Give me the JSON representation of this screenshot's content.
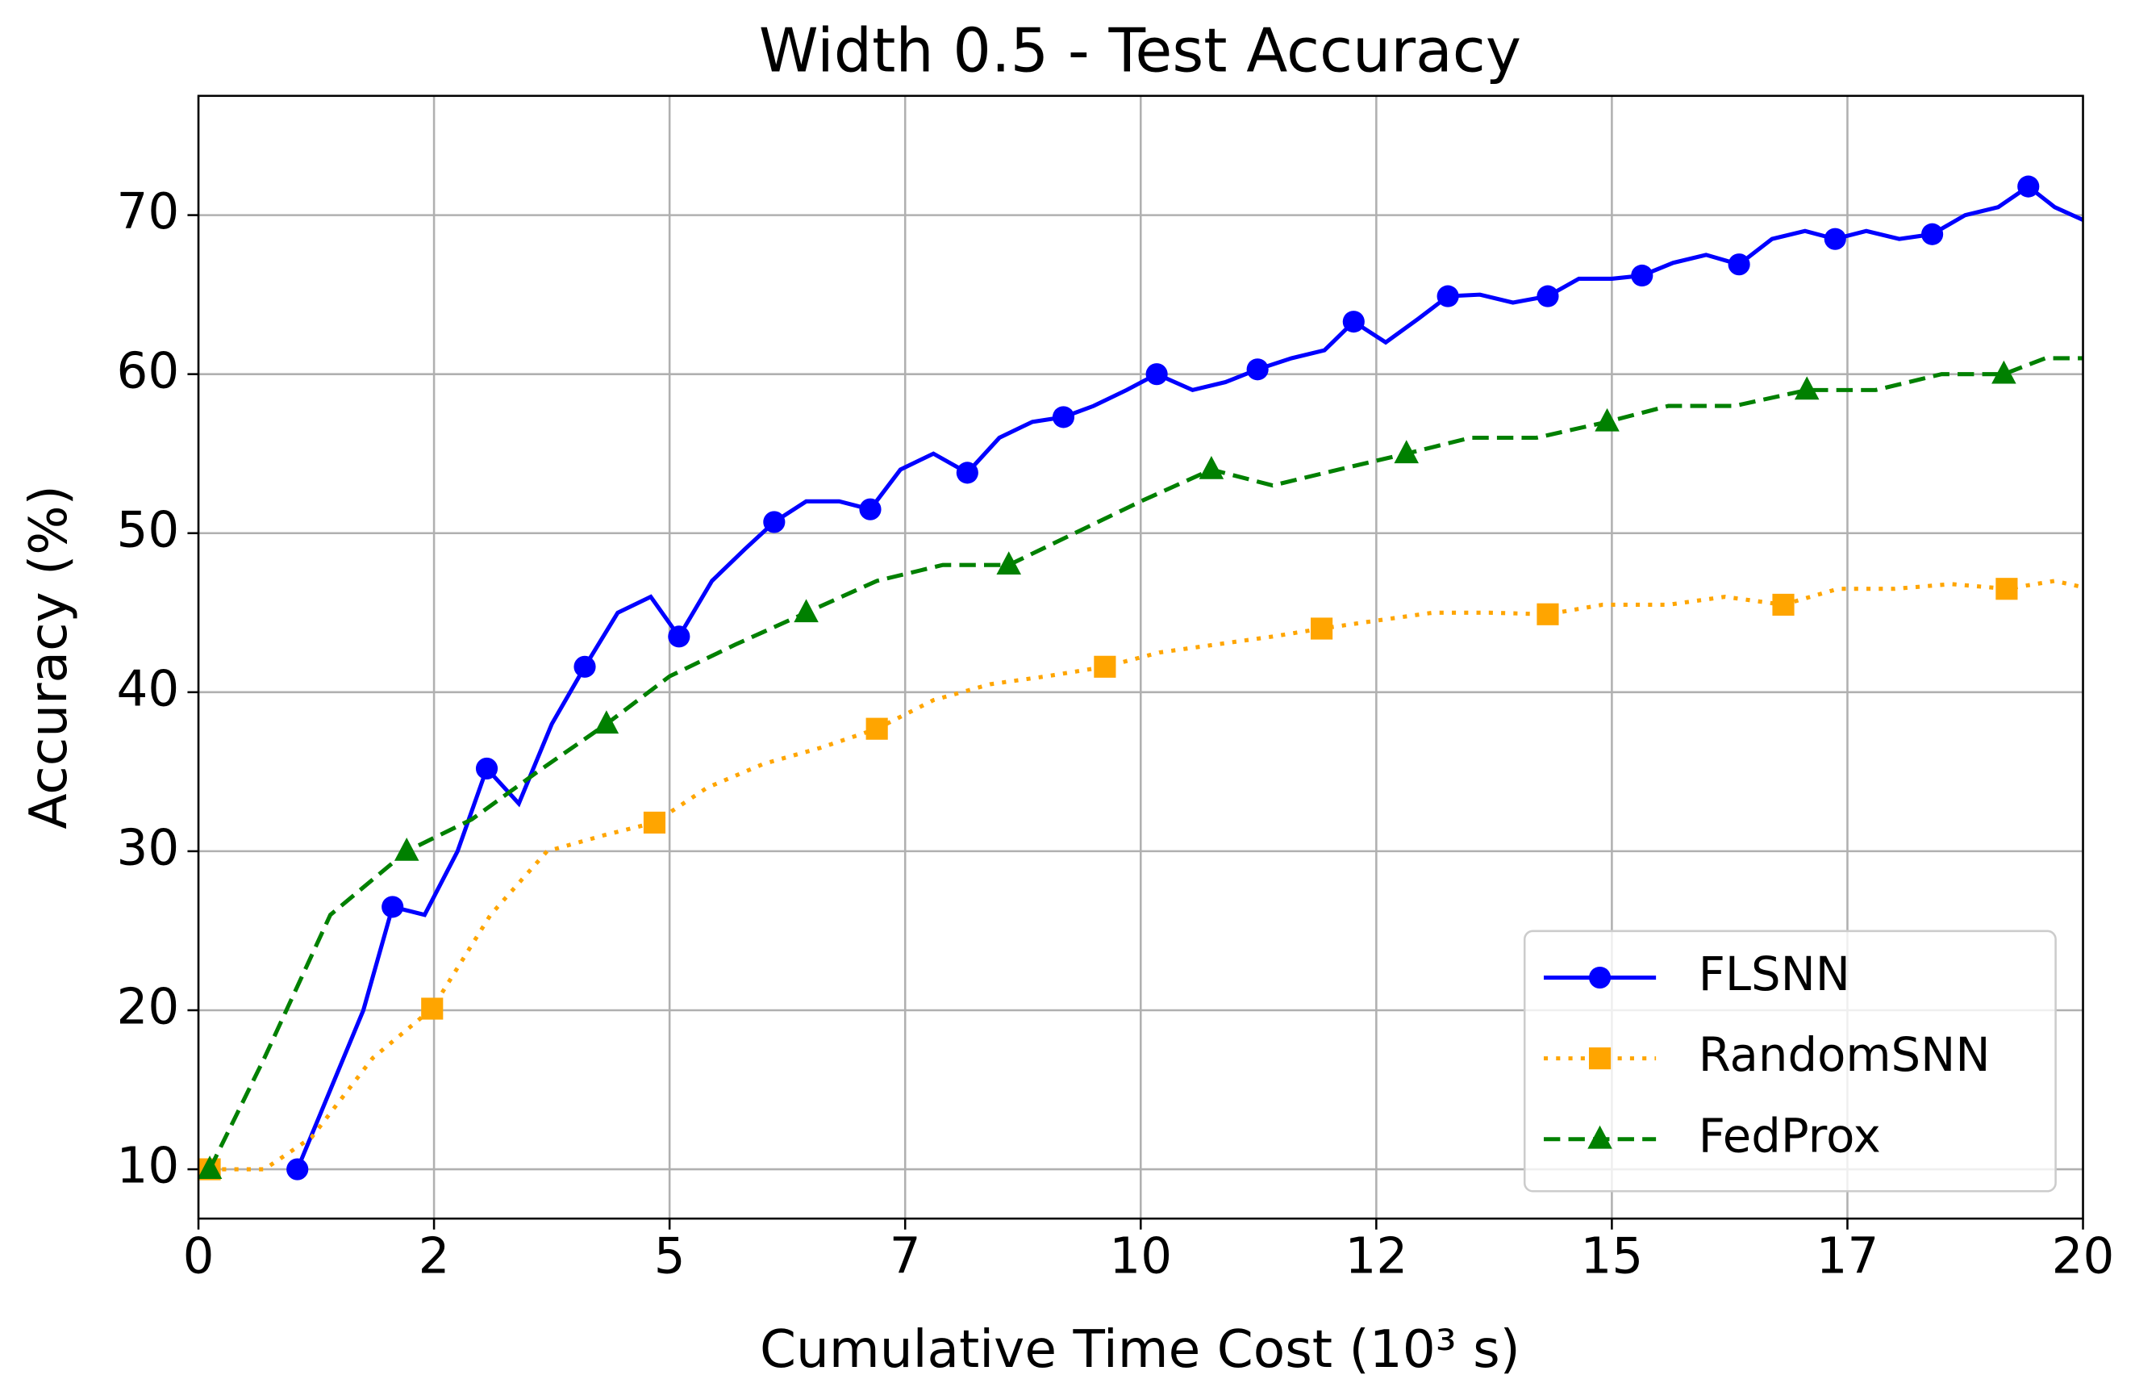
{
  "chart_data": {
    "type": "line",
    "title": "Width 0.5 - Test Accuracy",
    "xlabel": "Cumulative Time Cost (10³ s)",
    "ylabel": "Accuracy (%)",
    "xlim": [
      0,
      20
    ],
    "ylim": [
      6.9,
      77.5
    ],
    "xticks": [
      0,
      {
        "value": 2.5,
        "label": "2"
      },
      5,
      {
        "value": 7.5,
        "label": "7"
      },
      10,
      {
        "value": 12.5,
        "label": "12"
      },
      15,
      {
        "value": 17.5,
        "label": "17"
      },
      20
    ],
    "yticks": [
      10,
      20,
      30,
      40,
      50,
      60,
      70
    ],
    "grid": true,
    "legend": "lower right",
    "series": [
      {
        "name": "FLSNN",
        "color": "#0000ff",
        "linestyle": "solid",
        "marker": "circle",
        "markevery": 3,
        "x": [
          1.05,
          1.4,
          1.75,
          2.06,
          2.4,
          2.75,
          3.06,
          3.4,
          3.75,
          4.1,
          4.45,
          4.8,
          5.1,
          5.45,
          5.8,
          6.11,
          6.45,
          6.8,
          7.13,
          7.45,
          7.8,
          8.16,
          8.5,
          8.85,
          9.18,
          9.5,
          9.85,
          10.17,
          10.55,
          10.9,
          11.24,
          11.6,
          11.95,
          12.26,
          12.6,
          12.95,
          13.26,
          13.6,
          13.95,
          14.32,
          14.65,
          15.0,
          15.32,
          15.65,
          16.0,
          16.35,
          16.7,
          17.05,
          17.37,
          17.7,
          18.05,
          18.4,
          18.75,
          19.1,
          19.42,
          19.7,
          20
        ],
        "values": [
          10,
          15,
          20,
          26.5,
          26,
          30,
          35.2,
          33,
          38,
          41.6,
          45,
          46,
          43.5,
          47,
          49,
          50.7,
          52,
          52,
          51.5,
          54,
          55,
          53.8,
          56,
          57,
          57.3,
          58,
          59,
          60,
          59,
          59.5,
          60.3,
          61,
          61.5,
          63.3,
          62,
          63.5,
          64.9,
          65,
          64.5,
          64.9,
          66,
          66,
          66.2,
          67,
          67.5,
          66.9,
          68.5,
          69,
          68.5,
          69,
          68.5,
          68.8,
          70,
          70.5,
          71.8,
          70.5,
          69.7
        ]
      },
      {
        "name": "RandomSNN",
        "color": "#ffa500",
        "linestyle": "dotted",
        "marker": "square",
        "markevery": 4,
        "x": [
          0.12,
          0.7,
          1.2,
          1.85,
          2.48,
          3.1,
          3.7,
          4.3,
          4.84,
          5.4,
          6.0,
          6.6,
          7.2,
          7.8,
          8.4,
          9.0,
          9.62,
          10.2,
          10.8,
          11.4,
          11.92,
          12.5,
          13.1,
          13.7,
          14.32,
          14.9,
          15.6,
          16.2,
          16.82,
          17.4,
          18.0,
          18.6,
          19.19,
          19.7,
          20
        ],
        "values": [
          10,
          10,
          12,
          17,
          20.1,
          26,
          30,
          31,
          31.8,
          34,
          35.5,
          36.5,
          37.7,
          39.5,
          40.5,
          41,
          41.6,
          42.5,
          43,
          43.5,
          44,
          44.5,
          45,
          45,
          44.9,
          45.5,
          45.5,
          46,
          45.5,
          46.5,
          46.5,
          46.8,
          46.5,
          47,
          46.6
        ]
      },
      {
        "name": "FedProx",
        "color": "#008000",
        "linestyle": "dashed",
        "marker": "triangle",
        "markevery": 3,
        "x": [
          0.12,
          0.7,
          1.4,
          2.21,
          2.9,
          3.6,
          4.33,
          5.0,
          5.7,
          6.45,
          7.2,
          7.9,
          8.6,
          9.3,
          10.0,
          10.75,
          11.4,
          12.1,
          12.82,
          13.5,
          14.2,
          14.95,
          15.6,
          16.3,
          17.07,
          17.8,
          18.5,
          19.16,
          19.6,
          20
        ],
        "values": [
          10,
          17,
          26,
          30,
          32,
          35,
          38,
          41,
          43,
          45,
          47,
          48,
          48,
          50,
          52,
          54,
          53,
          54,
          55,
          56,
          56,
          57,
          58,
          58,
          59,
          59,
          60,
          60,
          61,
          61
        ]
      }
    ]
  }
}
